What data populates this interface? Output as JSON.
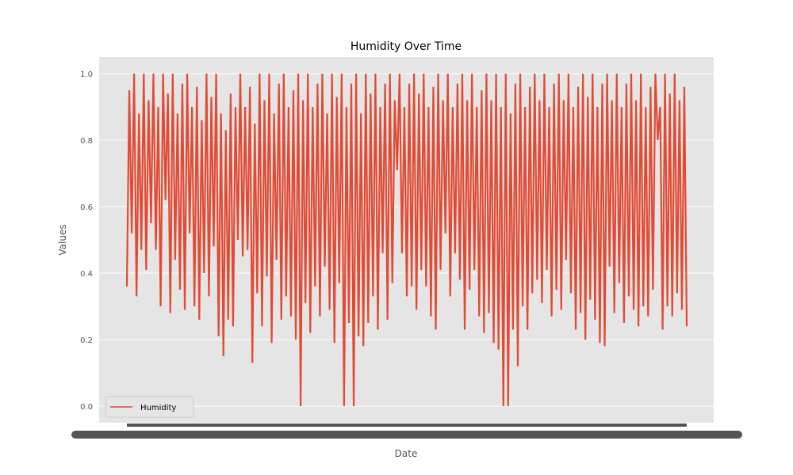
{
  "chart_data": {
    "type": "line",
    "title": "Humidity Over Time",
    "xlabel": "Date",
    "ylabel": "Values",
    "ylim": [
      -0.05,
      1.05
    ],
    "yticks": [
      0.0,
      0.2,
      0.4,
      0.6,
      0.8,
      1.0
    ],
    "ytick_labels": [
      "0.0",
      "0.2",
      "0.4",
      "0.6",
      "0.8",
      "1.0"
    ],
    "grid": true,
    "style": "ggplot",
    "legend_position": "lower-left",
    "x_tick_labels_overlapping": true,
    "series": [
      {
        "name": "Humidity",
        "color": "#E24A33",
        "values": [
          0.36,
          0.95,
          0.52,
          1.0,
          0.33,
          0.88,
          0.47,
          1.0,
          0.41,
          0.92,
          0.55,
          1.0,
          0.47,
          0.9,
          0.3,
          1.0,
          0.62,
          0.94,
          0.28,
          1.0,
          0.44,
          0.88,
          0.35,
          0.97,
          0.29,
          1.0,
          0.52,
          0.9,
          0.3,
          0.96,
          0.26,
          0.86,
          0.4,
          1.0,
          0.33,
          0.93,
          0.48,
          1.0,
          0.21,
          0.88,
          0.15,
          0.83,
          0.26,
          0.94,
          0.24,
          0.9,
          0.5,
          1.0,
          0.45,
          0.9,
          0.47,
          0.96,
          0.13,
          0.85,
          0.34,
          1.0,
          0.24,
          0.92,
          0.39,
          1.0,
          0.19,
          0.88,
          0.44,
          0.97,
          0.26,
          1.0,
          0.33,
          0.9,
          0.27,
          0.95,
          0.2,
          1.0,
          0.0,
          0.92,
          0.31,
          1.0,
          0.22,
          0.9,
          0.36,
          0.97,
          0.27,
          1.0,
          0.42,
          0.88,
          0.29,
          1.0,
          0.19,
          0.93,
          0.37,
          1.0,
          0.0,
          0.9,
          0.25,
          0.97,
          0.0,
          1.0,
          0.21,
          0.88,
          0.18,
          1.0,
          0.25,
          0.94,
          0.33,
          1.0,
          0.23,
          0.9,
          0.46,
          0.97,
          0.26,
          1.0,
          0.37,
          0.92,
          0.71,
          1.0,
          0.46,
          0.9,
          0.33,
          0.97,
          0.36,
          1.0,
          0.29,
          0.94,
          0.41,
          1.0,
          0.36,
          0.9,
          0.27,
          0.96,
          0.23,
          1.0,
          0.41,
          0.92,
          0.52,
          1.0,
          0.33,
          0.9,
          0.46,
          0.97,
          0.38,
          1.0,
          0.23,
          0.92,
          0.35,
          1.0,
          0.41,
          0.9,
          0.27,
          0.95,
          0.22,
          1.0,
          0.28,
          0.92,
          0.19,
          1.0,
          0.17,
          0.9,
          0.0,
          1.0,
          0.0,
          0.88,
          0.23,
          0.97,
          0.12,
          1.0,
          0.3,
          0.9,
          0.23,
          0.96,
          0.34,
          1.0,
          0.38,
          0.92,
          0.31,
          1.0,
          0.41,
          0.9,
          0.27,
          0.97,
          0.35,
          1.0,
          0.29,
          0.92,
          0.44,
          1.0,
          0.34,
          0.9,
          0.23,
          0.96,
          0.28,
          1.0,
          0.2,
          0.93,
          0.32,
          1.0,
          0.26,
          0.9,
          0.19,
          0.97,
          0.18,
          1.0,
          0.42,
          0.92,
          0.28,
          1.0,
          0.37,
          0.9,
          0.25,
          0.97,
          0.33,
          1.0,
          0.29,
          0.92,
          0.24,
          1.0,
          0.3,
          0.9,
          0.27,
          0.96,
          0.35,
          1.0,
          0.8,
          0.9,
          0.23,
          1.0,
          0.3,
          0.94,
          0.27,
          1.0,
          0.34,
          0.92,
          0.29,
          0.96,
          0.24
        ]
      }
    ]
  }
}
